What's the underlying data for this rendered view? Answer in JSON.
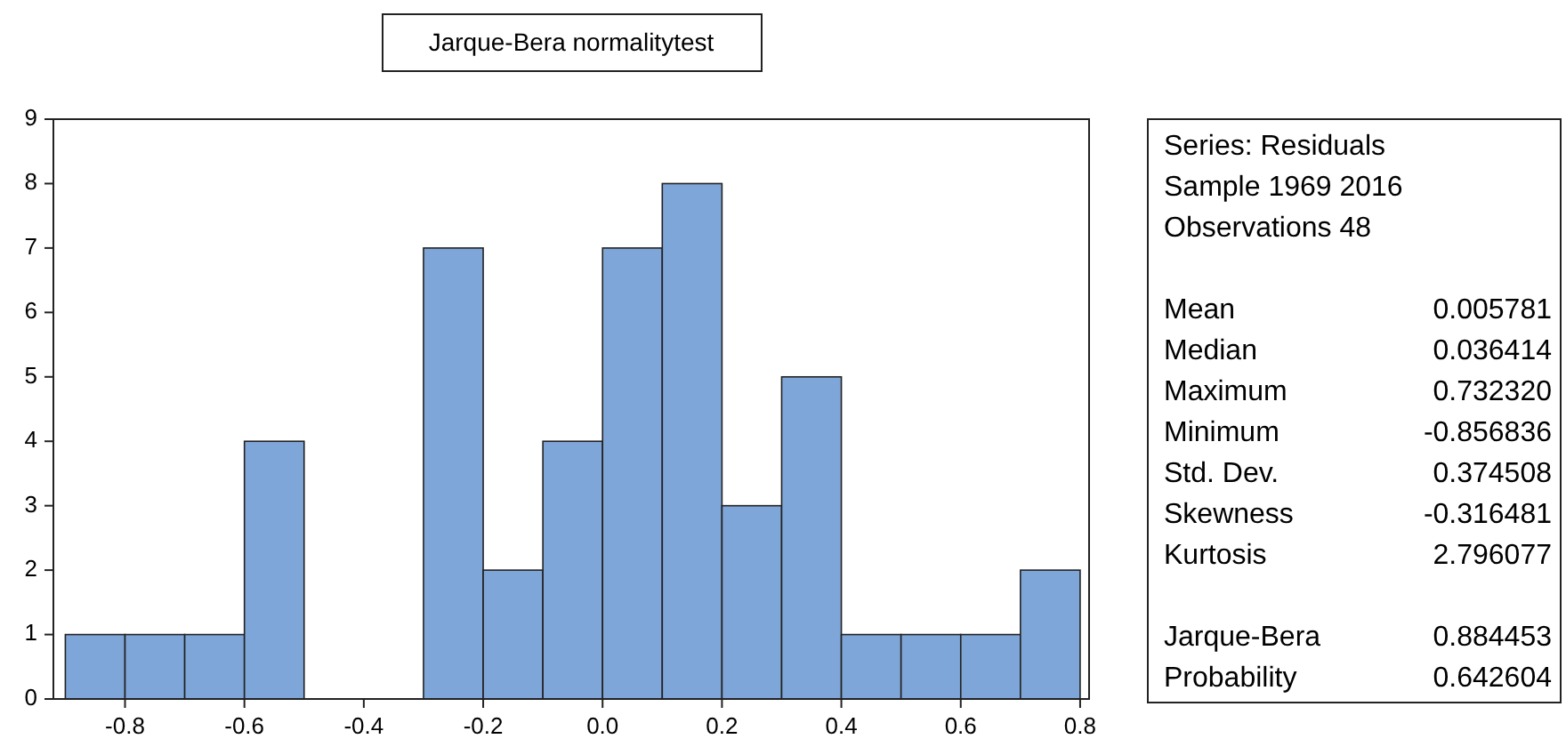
{
  "chart_data": {
    "type": "histogram",
    "title": "Jarque-Bera normalitytest",
    "bins": [
      -0.9,
      -0.8,
      -0.7,
      -0.6,
      -0.5,
      -0.4,
      -0.3,
      -0.2,
      -0.1,
      0,
      0.1,
      0.2,
      0.3,
      0.4,
      0.5,
      0.6,
      0.7,
      0.8
    ],
    "values": [
      1,
      1,
      1,
      4,
      0,
      0,
      7,
      2,
      4,
      7,
      8,
      3,
      5,
      1,
      1,
      1,
      2
    ],
    "color": "#7fa6d8",
    "xlim": [
      -0.92,
      0.815
    ],
    "xticks": [
      -0.8,
      -0.6,
      -0.4,
      -0.2,
      {
        "value": 0,
        "label": "0.0"
      },
      0.2,
      0.4,
      0.6,
      0.8
    ],
    "ylim": [
      0,
      9
    ],
    "yticks": [
      0,
      1,
      2,
      3,
      4,
      5,
      6,
      7,
      8,
      9
    ],
    "grid": false,
    "annotations": [
      "Series: Residuals",
      "Sample 1969 2016",
      "Observations 48",
      "Mean\t0.005781",
      "Median\t0.036414",
      "Maximum\t0.732320",
      "Minimum\t-0.856836",
      "Std. Dev.\t0.374508",
      "Skewness\t-0.316481",
      "Kurtosis\t2.796077",
      "Jarque-Bera\t0.884453",
      "Probability\t0.642604"
    ]
  }
}
